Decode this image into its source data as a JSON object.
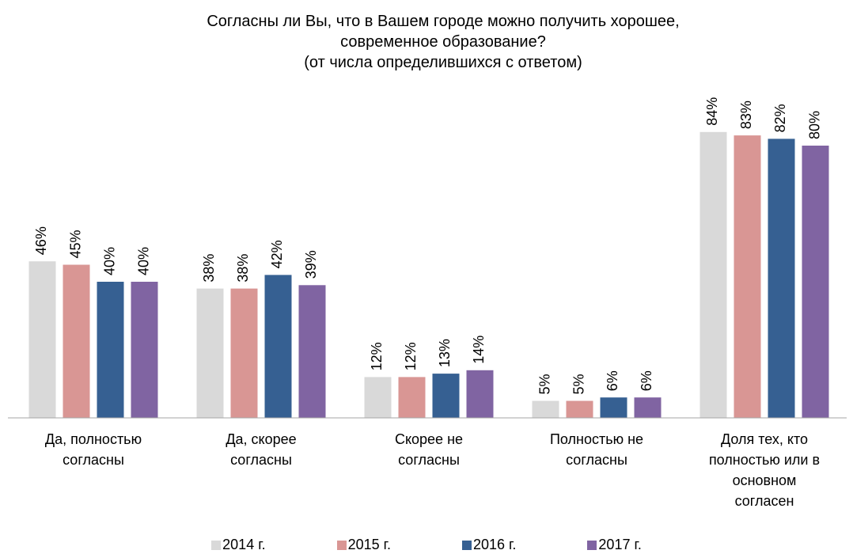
{
  "chart_data": {
    "type": "bar",
    "title": "Согласны ли Вы, что в Вашем городе можно получить хорошее,\nсовременное образование?\n(от числа определившихся с ответом)",
    "categories": [
      "Да, полностью согласны",
      "Да, скорее согласны",
      "Скорее не согласны",
      "Полностью не согласны",
      "Доля тех, кто полностью или в основном согласен"
    ],
    "ylim": [
      0,
      100
    ],
    "legend": "bottom",
    "series": [
      {
        "name": "2014 г.",
        "color": "#d9d9d9",
        "values": [
          46,
          38,
          12,
          5,
          84
        ],
        "value_labels": [
          "46%",
          "38%",
          "12%",
          "5%",
          "84%"
        ]
      },
      {
        "name": "2015 г.",
        "color": "#d99694",
        "values": [
          45,
          38,
          12,
          5,
          83
        ],
        "value_labels": [
          "45%",
          "38%",
          "12%",
          "5%",
          "83%"
        ]
      },
      {
        "name": "2016 г.",
        "color": "#366092",
        "values": [
          40,
          42,
          13,
          6,
          82
        ],
        "value_labels": [
          "40%",
          "42%",
          "13%",
          "6%",
          "82%"
        ]
      },
      {
        "name": "2017 г.",
        "color": "#8064a2",
        "values": [
          40,
          39,
          14,
          6,
          80
        ],
        "value_labels": [
          "40%",
          "39%",
          "14%",
          "6%",
          "80%"
        ]
      }
    ]
  }
}
